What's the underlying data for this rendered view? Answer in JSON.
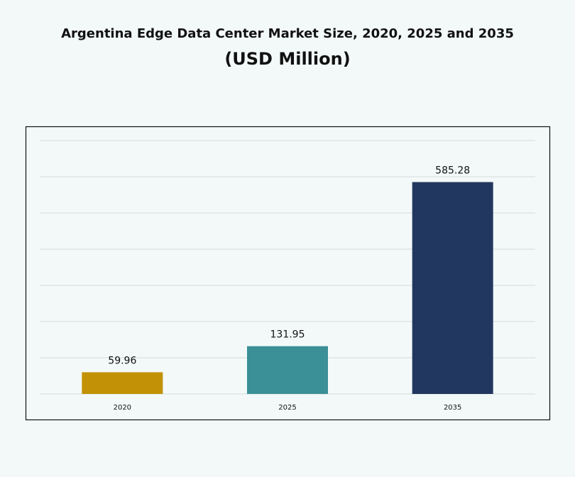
{
  "chart_data": {
    "type": "bar",
    "title": "Argentina Edge Data Center Market Size, 2020, 2025 and 2035",
    "subtitle": "(USD Million)",
    "categories": [
      "2020",
      "2025",
      "2035"
    ],
    "values": [
      59.96,
      131.95,
      585.28
    ],
    "colors": [
      "#c29105",
      "#3b8f97",
      "#22375f"
    ],
    "ylim": [
      0,
      700
    ],
    "yticks": [
      0,
      100,
      200,
      300,
      400,
      500,
      600,
      700
    ],
    "grid": true
  }
}
